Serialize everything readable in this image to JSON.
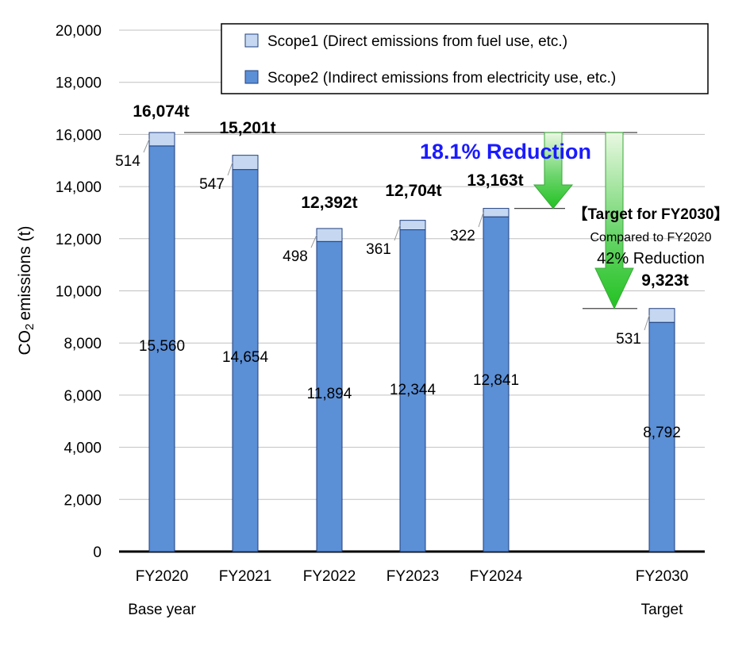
{
  "chart_data": {
    "type": "bar",
    "stacked": true,
    "categories": [
      "FY2020",
      "FY2021",
      "FY2022",
      "FY2023",
      "FY2024",
      "FY2030"
    ],
    "category_sublabels": [
      "Base year",
      "",
      "",
      "",
      "",
      "Target"
    ],
    "series": [
      {
        "name": "Scope2 (Indirect emissions from electricity use, etc.)",
        "values": [
          15560,
          14654,
          11894,
          12344,
          12841,
          8792
        ],
        "color": "#5b8fd6"
      },
      {
        "name": "Scope1 (Direct emissions from fuel use, etc.)",
        "values": [
          514,
          547,
          498,
          361,
          322,
          531
        ],
        "color": "#c6d8f1"
      }
    ],
    "segment_labels": {
      "scope2": [
        "15,560",
        "14,654",
        "11,894",
        "12,344",
        "12,841",
        "8,792"
      ],
      "scope1": [
        "514",
        "547",
        "498",
        "361",
        "322",
        "531"
      ]
    },
    "totals": [
      16074,
      15201,
      12392,
      12704,
      13163,
      9323
    ],
    "total_labels": [
      "16,074t",
      "15,201t",
      "12,392t",
      "12,704t",
      "13,163t",
      "9,323t"
    ],
    "ylabel": "CO₂ emissions (t)",
    "ylabel_parts": [
      "CO",
      "2",
      "emissions",
      "(t)"
    ],
    "ylim": [
      0,
      20000
    ],
    "yticks": [
      0,
      2000,
      4000,
      6000,
      8000,
      10000,
      12000,
      14000,
      16000,
      18000,
      20000
    ],
    "ytick_labels": [
      "0",
      "2,000",
      "4,000",
      "6,000",
      "8,000",
      "10,000",
      "12,000",
      "14,000",
      "16,000",
      "18,000",
      "20,000"
    ],
    "grid": true,
    "legend_position": "top-right",
    "annotations": {
      "reduction_2024": "18.1% Reduction",
      "target_title": "【Target for FY2030】",
      "target_sub": "Compared to FY2020",
      "target_reduction": "42% Reduction"
    },
    "colors": {
      "arrow_green": "#2ecc2e",
      "reduction_text": "#1a1aff",
      "gridline": "#c0c0c0",
      "bar_edge": "#1f3f7f"
    }
  }
}
